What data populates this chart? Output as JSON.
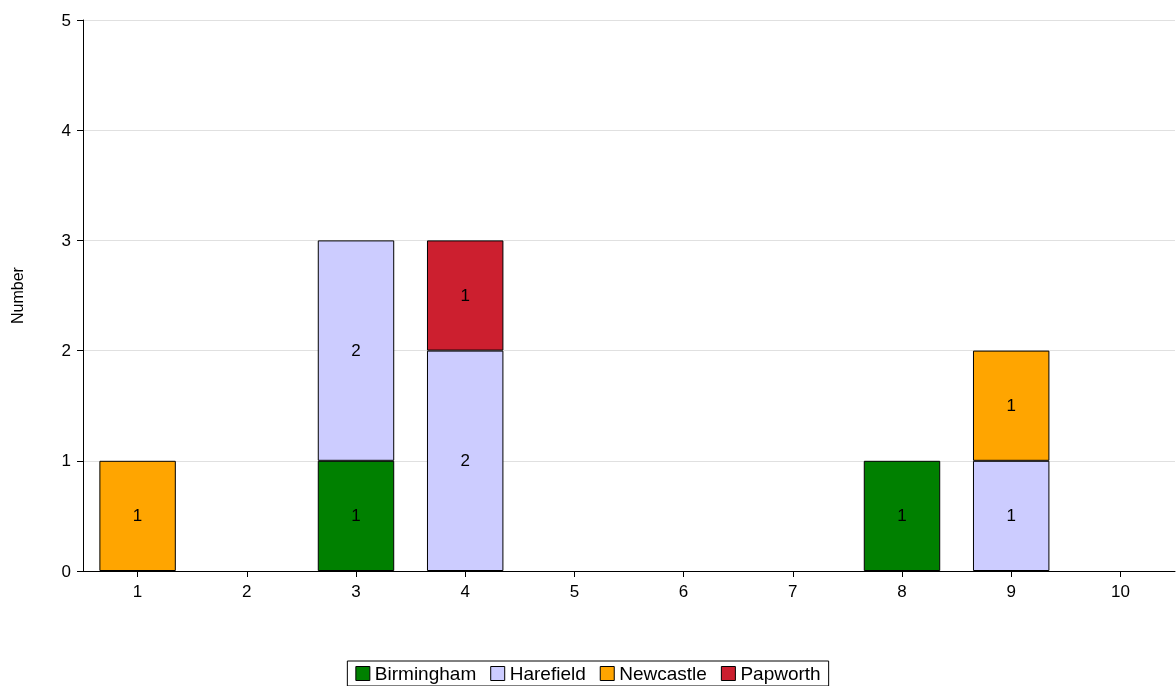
{
  "chart_data": {
    "type": "bar",
    "stacked": true,
    "ylabel": "Number",
    "categories": [
      "1",
      "2",
      "3",
      "4",
      "5",
      "6",
      "7",
      "8",
      "9",
      "10"
    ],
    "series": [
      {
        "name": "Birmingham",
        "color": "#008000",
        "values": [
          null,
          null,
          1,
          null,
          null,
          null,
          null,
          1,
          null,
          null
        ]
      },
      {
        "name": "Harefield",
        "color": "#ccccff",
        "values": [
          null,
          null,
          2,
          2,
          null,
          null,
          null,
          null,
          1,
          null
        ]
      },
      {
        "name": "Newcastle",
        "color": "#ffa500",
        "values": [
          1,
          null,
          null,
          null,
          null,
          null,
          null,
          null,
          1,
          null
        ]
      },
      {
        "name": "Papworth",
        "color": "#cc1f2f",
        "values": [
          null,
          null,
          null,
          1,
          null,
          null,
          null,
          null,
          null,
          null
        ]
      }
    ],
    "ylim": [
      0,
      5
    ],
    "yticks": [
      0,
      1,
      2,
      3,
      4,
      5
    ],
    "grid": "y",
    "legend": "bottom",
    "data_labels": true
  }
}
